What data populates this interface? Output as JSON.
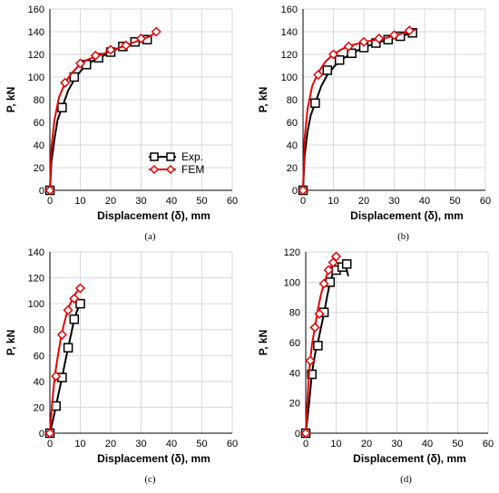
{
  "chart_data": [
    {
      "panel": "a",
      "type": "line",
      "caption": "(a)",
      "xlabel": "Displacement (δ), mm",
      "ylabel": "P, kN",
      "xlim": [
        0,
        60
      ],
      "ylim": [
        0,
        160
      ],
      "xticks": [
        "0",
        "10",
        "20",
        "30",
        "40",
        "50",
        "60"
      ],
      "yticks": [
        "0",
        "20",
        "40",
        "60",
        "80",
        "100",
        "120",
        "140",
        "160"
      ],
      "grid": true,
      "legend": {
        "placement": "center-right",
        "entries": [
          "Exp.",
          "FEM"
        ]
      },
      "series": [
        {
          "name": "Exp.",
          "color": "#000000",
          "marker": "square",
          "x": [
            0,
            0.5,
            1.5,
            2.5,
            4,
            6,
            8.5,
            11,
            14,
            17,
            20,
            23,
            26,
            29,
            32
          ],
          "y": [
            0,
            25,
            45,
            62,
            73,
            88,
            100,
            108,
            114,
            118,
            122,
            126,
            129,
            131,
            133
          ],
          "markers_x": [
            0,
            4,
            8,
            12,
            16,
            20,
            24,
            28,
            32
          ],
          "markers_y": [
            0,
            73,
            100,
            111,
            117,
            122,
            127,
            131,
            133
          ]
        },
        {
          "name": "FEM",
          "color": "#e60000",
          "marker": "diamond",
          "x": [
            0,
            0.5,
            1.5,
            3,
            5,
            7,
            9.5,
            12,
            15,
            18,
            21,
            24,
            27,
            30,
            33,
            35
          ],
          "y": [
            0,
            38,
            62,
            82,
            95,
            103,
            110,
            115,
            118,
            121,
            124,
            127,
            130,
            133,
            136,
            140
          ],
          "markers_x": [
            0,
            5,
            10,
            15,
            20,
            25,
            30,
            35
          ],
          "markers_y": [
            0,
            95,
            112,
            119,
            124,
            128,
            134,
            140
          ]
        }
      ]
    },
    {
      "panel": "b",
      "type": "line",
      "caption": "(b)",
      "xlabel": "Displacement (δ), mm",
      "ylabel": "P, kN",
      "xlim": [
        0,
        60
      ],
      "ylim": [
        0,
        160
      ],
      "xticks": [
        "0",
        "10",
        "20",
        "30",
        "40",
        "50",
        "60"
      ],
      "yticks": [
        "0",
        "20",
        "40",
        "60",
        "80",
        "100",
        "120",
        "140",
        "160"
      ],
      "grid": true,
      "series": [
        {
          "name": "Exp.",
          "color": "#000000",
          "marker": "square",
          "x": [
            0,
            0.5,
            1.5,
            2.5,
            4,
            6,
            8,
            10.5,
            13,
            16,
            20,
            24,
            28,
            32,
            36
          ],
          "y": [
            0,
            30,
            52,
            66,
            77,
            92,
            102,
            110,
            116,
            121,
            126,
            130,
            133,
            136,
            139
          ],
          "markers_x": [
            0,
            4,
            8,
            12,
            16,
            20,
            24,
            28,
            32,
            36
          ],
          "markers_y": [
            0,
            77,
            106,
            115,
            121,
            126,
            130,
            133,
            136,
            139
          ]
        },
        {
          "name": "FEM",
          "color": "#e60000",
          "marker": "diamond",
          "x": [
            0,
            0.5,
            1.5,
            3,
            5,
            7.5,
            10,
            13,
            16,
            20,
            24,
            28,
            32,
            35,
            37
          ],
          "y": [
            0,
            45,
            72,
            92,
            104,
            114,
            120,
            125,
            128,
            131,
            133,
            135,
            138,
            140,
            142
          ],
          "markers_x": [
            0,
            5,
            10,
            15,
            20,
            25,
            30,
            35
          ],
          "markers_y": [
            0,
            102,
            120,
            127,
            131,
            134,
            137,
            141
          ]
        }
      ]
    },
    {
      "panel": "c",
      "type": "line",
      "caption": "(c)",
      "xlabel": "Displacement (δ), mm",
      "ylabel": "P, kN",
      "xlim": [
        0,
        60
      ],
      "ylim": [
        0,
        140
      ],
      "xticks": [
        "0",
        "10",
        "20",
        "30",
        "40",
        "50",
        "60"
      ],
      "yticks": [
        "0",
        "20",
        "40",
        "60",
        "80",
        "100",
        "120",
        "140"
      ],
      "grid": true,
      "series": [
        {
          "name": "Exp.",
          "color": "#000000",
          "marker": "square",
          "x": [
            0,
            1,
            2,
            3,
            4,
            5,
            6,
            7,
            8,
            9,
            10
          ],
          "y": [
            0,
            10,
            21,
            32,
            43,
            55,
            66,
            77,
            88,
            95,
            100
          ],
          "markers_x": [
            0,
            2,
            4,
            6,
            8,
            10
          ],
          "markers_y": [
            0,
            21,
            43,
            66,
            88,
            100
          ]
        },
        {
          "name": "FEM",
          "color": "#e60000",
          "marker": "diamond",
          "x": [
            0,
            0.8,
            1.6,
            2.5,
            3.5,
            4.5,
            5.5,
            6.5,
            7.5,
            8.5,
            9.5,
            10.5
          ],
          "y": [
            0,
            25,
            44,
            58,
            72,
            83,
            92,
            99,
            104,
            108,
            111,
            113
          ],
          "markers_x": [
            0,
            2,
            4,
            6,
            8,
            10
          ],
          "markers_y": [
            0,
            44,
            76,
            95,
            104,
            112
          ]
        }
      ]
    },
    {
      "panel": "d",
      "type": "line",
      "caption": "(d)",
      "xlabel": "Displacement (δ), mm",
      "ylabel": "P, kN",
      "xlim": [
        0,
        60
      ],
      "ylim": [
        0,
        120
      ],
      "xticks": [
        "0",
        "10",
        "20",
        "30",
        "40",
        "50",
        "60"
      ],
      "yticks": [
        "0",
        "20",
        "40",
        "60",
        "80",
        "100",
        "120"
      ],
      "grid": true,
      "series": [
        {
          "name": "Exp.",
          "color": "#000000",
          "marker": "square",
          "x": [
            0,
            1,
            2,
            3,
            4,
            5,
            6,
            7,
            8,
            9,
            10,
            11,
            12,
            13,
            13.5,
            14
          ],
          "y": [
            0,
            18,
            39,
            52,
            60,
            70,
            79,
            90,
            100,
            106,
            108,
            110,
            111,
            112,
            108,
            104
          ],
          "markers_x": [
            0,
            2,
            4,
            6,
            8,
            10,
            12,
            13.5
          ],
          "markers_y": [
            0,
            39,
            58,
            80,
            100,
            108,
            110,
            112
          ]
        },
        {
          "name": "FEM",
          "color": "#e60000",
          "marker": "diamond",
          "x": [
            0,
            0.5,
            1,
            1.5,
            2,
            3,
            4,
            5,
            6,
            7,
            8,
            9,
            10
          ],
          "y": [
            0,
            20,
            38,
            48,
            58,
            70,
            82,
            92,
            99,
            105,
            109,
            113,
            117
          ],
          "markers_x": [
            0,
            1.5,
            3,
            4.5,
            6,
            7.5,
            9,
            10
          ],
          "markers_y": [
            0,
            48,
            70,
            79,
            99,
            108,
            113,
            117
          ]
        }
      ]
    }
  ]
}
